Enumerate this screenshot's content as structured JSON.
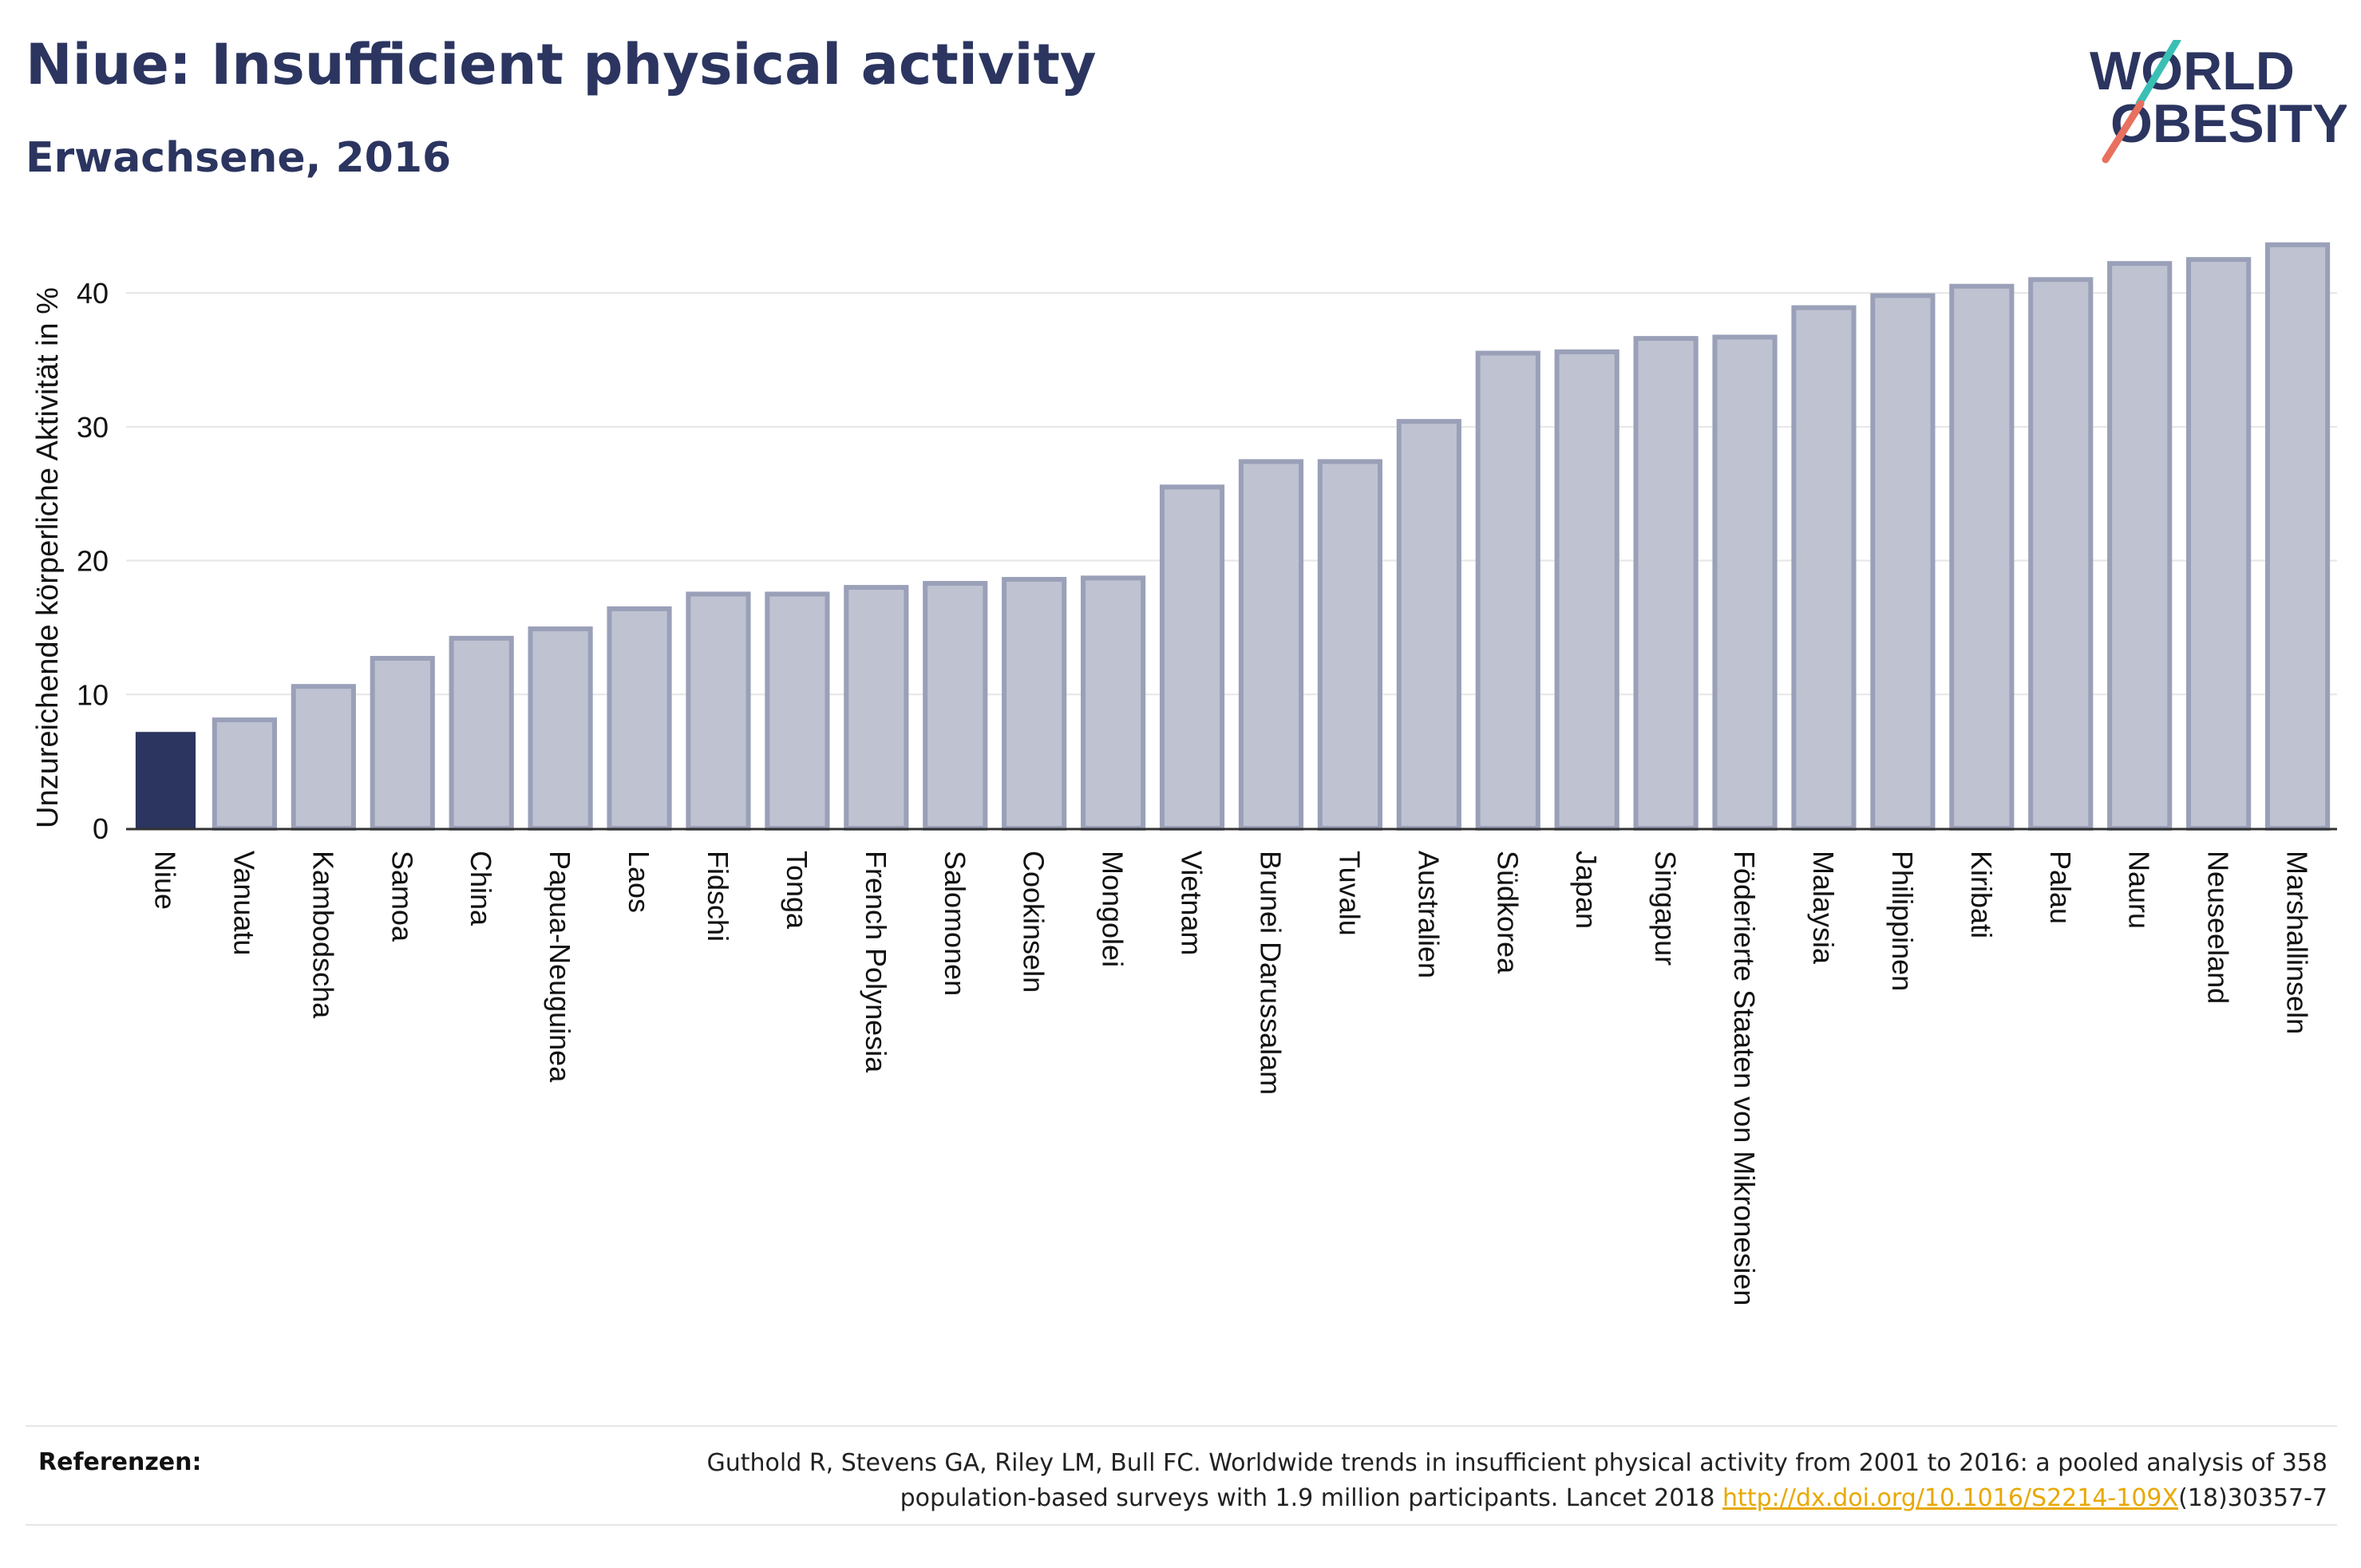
{
  "header": {
    "title": "Niue: Insufficient physical activity",
    "subtitle": "Erwachsene, 2016"
  },
  "logo": {
    "line1": "WORLD",
    "line2": "OBESITY",
    "colors": {
      "text": "#2b3560",
      "slash_teal": "#3bbfb5",
      "slash_coral": "#e8705f"
    }
  },
  "colors": {
    "highlight": "#2b3560",
    "bar_fill": "#bfc3d1",
    "bar_stroke": "#9aa0b8",
    "grid": "#e6e6e6",
    "axis": "#333333",
    "text": "#111111"
  },
  "chart_data": {
    "type": "bar",
    "ylabel": "Unzureichende körperliche Aktivität in %",
    "ylim": [
      0,
      44
    ],
    "yticks": [
      0,
      10,
      20,
      30,
      40
    ],
    "grid": true,
    "highlight_index": 0,
    "categories": [
      "Niue",
      "Vanuatu",
      "Kambodscha",
      "Samoa",
      "China",
      "Papua-Neuguinea",
      "Laos",
      "Fidschi",
      "Tonga",
      "French Polynesia",
      "Salomonen",
      "Cookinseln",
      "Mongolei",
      "Vietnam",
      "Brunei Darussalam",
      "Tuvalu",
      "Australien",
      "Südkorea",
      "Japan",
      "Singapur",
      "Föderierte Staaten von Mikronesien",
      "Malaysia",
      "Philippinen",
      "Kiribati",
      "Palau",
      "Nauru",
      "Neuseeland",
      "Marshallinseln"
    ],
    "values": [
      7.2,
      8.1,
      10.6,
      12.7,
      14.2,
      14.9,
      16.4,
      17.5,
      17.5,
      18.0,
      18.3,
      18.6,
      18.7,
      25.5,
      27.4,
      27.4,
      30.4,
      35.5,
      35.6,
      36.6,
      36.7,
      38.9,
      39.8,
      40.5,
      41.0,
      42.2,
      42.5,
      43.6
    ]
  },
  "references": {
    "label": "Referenzen:",
    "line1": "Guthold R, Stevens GA, Riley LM, Bull FC. Worldwide trends in insufficient physical activity from 2001 to 2016: a pooled analysis of 358",
    "line2_prefix": "population-based surveys with 1.9 million participants. Lancet 2018 ",
    "link": "http://dx.doi.org/10.1016/S2214-109X",
    "line2_suffix": "(18)30357-7"
  }
}
